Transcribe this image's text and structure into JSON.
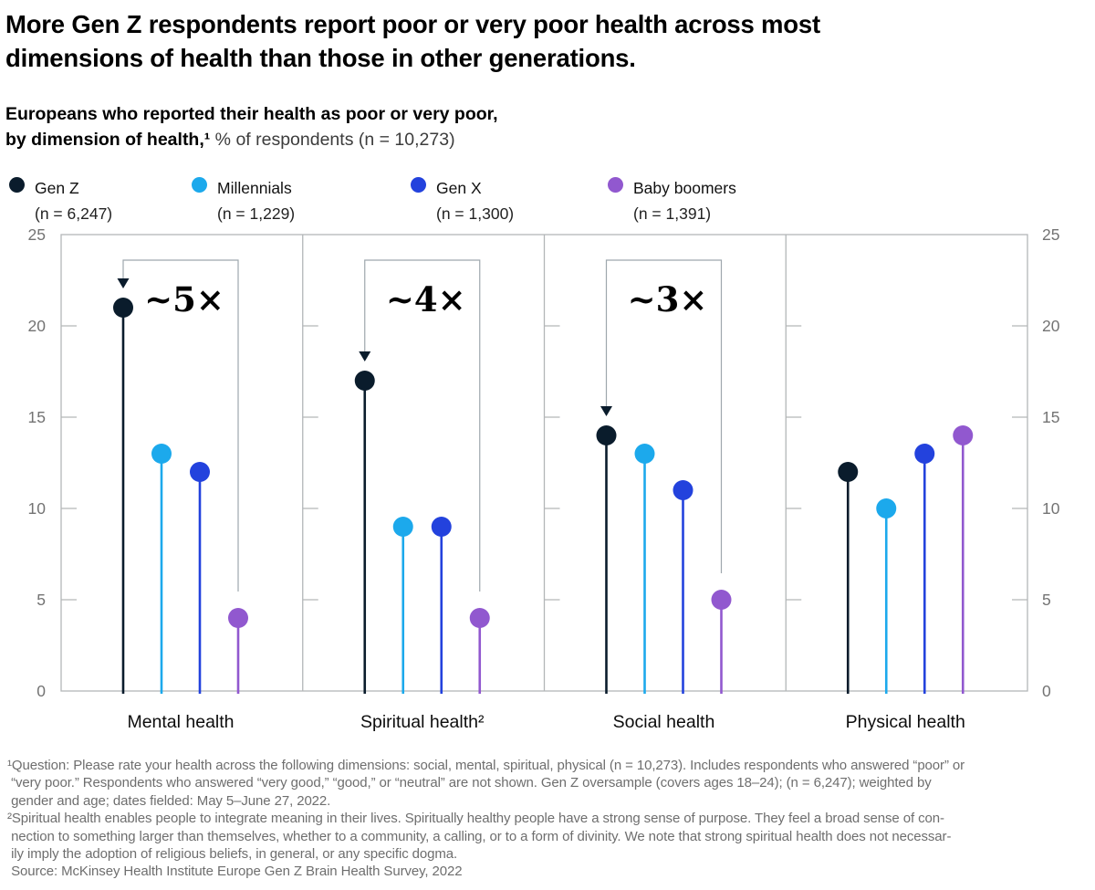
{
  "header": {
    "title_line1": "More Gen Z respondents report poor or very poor health across most",
    "title_line2": "dimensions of health than those in other generations.",
    "subtitle_bold_line1": "Europeans who reported their health as poor or very poor,",
    "subtitle_bold_line2": "by dimension of health,¹",
    "subtitle_unit": " % of respondents (n = 10,273)"
  },
  "chart_data": {
    "type": "lollipop",
    "ylim": [
      0,
      25
    ],
    "yticks": [
      0,
      5,
      10,
      15,
      20,
      25
    ],
    "categories": [
      "Mental health",
      "Spiritual health²",
      "Social health",
      "Physical health"
    ],
    "series": [
      {
        "name": "Gen Z",
        "n": "(n = 6,247)",
        "color": "#0a1c2c",
        "values": [
          21,
          17,
          14,
          12
        ]
      },
      {
        "name": "Millennials",
        "n": "(n = 1,229)",
        "color": "#1ca9ec",
        "values": [
          13,
          9,
          13,
          10
        ]
      },
      {
        "name": "Gen X",
        "n": "(n = 1,300)",
        "color": "#2342dd",
        "values": [
          12,
          9,
          11,
          13
        ]
      },
      {
        "name": "Baby boomers",
        "n": "(n = 1,391)",
        "color": "#9158cf",
        "values": [
          4,
          4,
          5,
          14
        ]
      }
    ],
    "annotations": [
      {
        "category_index": 0,
        "label": "~5×",
        "from_series": "Gen Z",
        "to_series": "Baby boomers"
      },
      {
        "category_index": 1,
        "label": "~4×",
        "from_series": "Gen Z",
        "to_series": "Baby boomers"
      },
      {
        "category_index": 2,
        "label": "~3×",
        "from_series": "Gen Z",
        "to_series": "Baby boomers"
      }
    ],
    "axis_color": "#b3b6b8",
    "tick_label_color": "#737373",
    "bracket_color": "#9ea7ad",
    "arrow_color": "#0a1c2c",
    "category_label_color": "#0d0d0d",
    "annotation_label_color": "#000000"
  },
  "footnotes": {
    "f1_lines": [
      "¹Question: Please rate your health across the following dimensions: social, mental, spiritual, physical (n = 10,273). Includes respondents who answered “poor” or",
      " “very poor.” Respondents who answered “very good,” “good,” or “neutral” are not shown. Gen Z oversample (covers ages 18–24); (n = 6,247); weighted by",
      " gender and age; dates fielded: May 5–June 27, 2022."
    ],
    "f2_lines": [
      "²Spiritual health enables people to integrate meaning in their lives. Spiritually healthy people have a strong sense of purpose. They feel a broad sense of con-",
      " nection to something larger than themselves, whether to a community, a calling, or to a form of divinity. We note that strong spiritual health does not necessar-",
      " ily imply the adoption of religious beliefs, in general, or any specific dogma.",
      " Source: McKinsey Health Institute Europe Gen Z Brain Health Survey, 2022"
    ]
  }
}
